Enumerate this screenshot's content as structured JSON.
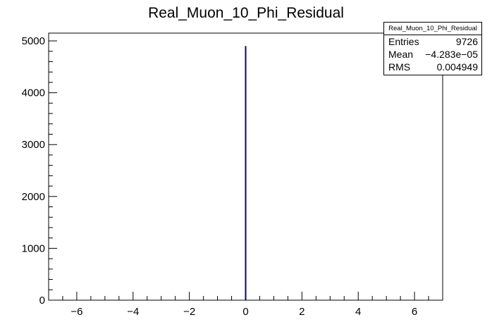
{
  "chart_data": {
    "type": "histogram",
    "title": "Real_Muon_10_Phi_Residual",
    "xlabel": "",
    "ylabel": "",
    "xlim": [
      -7,
      7
    ],
    "ylim": [
      0,
      5150
    ],
    "x_ticks": [
      -6,
      -4,
      -2,
      0,
      2,
      4,
      6
    ],
    "x_tick_labels": [
      "−6",
      "−4",
      "−2",
      "0",
      "2",
      "4",
      "6"
    ],
    "y_ticks": [
      0,
      1000,
      2000,
      3000,
      4000,
      5000
    ],
    "y_tick_labels": [
      "0",
      "1000",
      "2000",
      "3000",
      "4000",
      "5000"
    ],
    "line_color": "#00008b",
    "bins": [
      {
        "x": -0.01,
        "value": 0
      },
      {
        "x": 0.0,
        "value": 4900
      },
      {
        "x": 0.01,
        "value": 0
      }
    ]
  },
  "stats": {
    "title": "Real_Muon_10_Phi_Residual",
    "rows": [
      {
        "label": "Entries",
        "value": "9726"
      },
      {
        "label": "Mean",
        "value": "−4.283e−05"
      },
      {
        "label": "RMS",
        "value": "0.004949"
      }
    ]
  }
}
